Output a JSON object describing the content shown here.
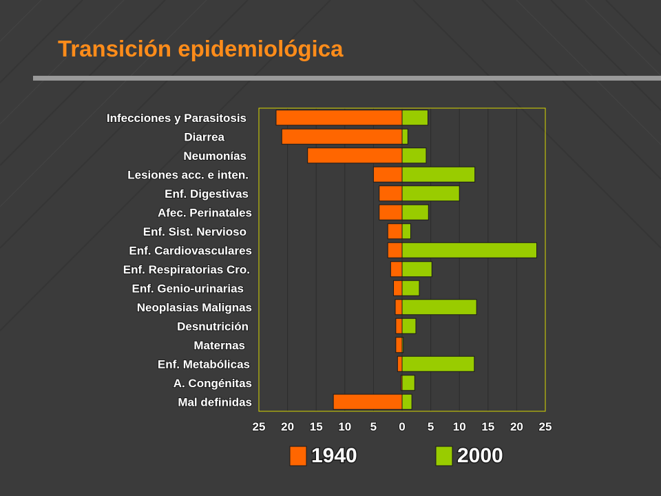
{
  "title": "Transición epidemiológica",
  "colors": {
    "background": "#3b3b3b",
    "title": "#ff8c1a",
    "rule": "#9a9a9a",
    "series_1940": "#ff6600",
    "series_2000": "#99cc00",
    "frame": "#d8d800"
  },
  "chart_data": {
    "type": "bar",
    "orientation": "horizontal-diverging",
    "categories": [
      "Infecciones y Parasitosis",
      "Diarrea",
      "Neumonías",
      "Lesiones acc. e inten.",
      "Enf. Digestivas",
      "Afec. Perinatales",
      "Enf. Sist. Nervioso",
      "Enf. Cardiovasculares",
      "Enf. Respiratorias Cro.",
      "Enf. Genio-urinarias",
      "Neoplasias Malignas",
      "Desnutrición",
      "Maternas",
      "Enf. Metabólicas",
      "A. Congénitas",
      "Mal definidas"
    ],
    "series": [
      {
        "name": "1940",
        "direction": "left",
        "values": [
          22,
          21,
          16.5,
          5,
          4,
          4,
          2.5,
          2.5,
          2,
          1.5,
          1.2,
          1.1,
          1.1,
          0.8,
          0.2,
          12
        ]
      },
      {
        "name": "2000",
        "direction": "right",
        "values": [
          4.5,
          1,
          4.2,
          12.7,
          10,
          4.6,
          1.5,
          23.5,
          5.2,
          3,
          13,
          2.4,
          0.2,
          12.6,
          2.2,
          1.7
        ]
      }
    ],
    "xlim": [
      -25,
      25
    ],
    "x_tick_labels": [
      "25",
      "20",
      "15",
      "10",
      "5",
      "0",
      "5",
      "10",
      "15",
      "20",
      "25"
    ],
    "grid": true,
    "legend": "bottom",
    "legend_entries": [
      "1940",
      "2000"
    ]
  }
}
